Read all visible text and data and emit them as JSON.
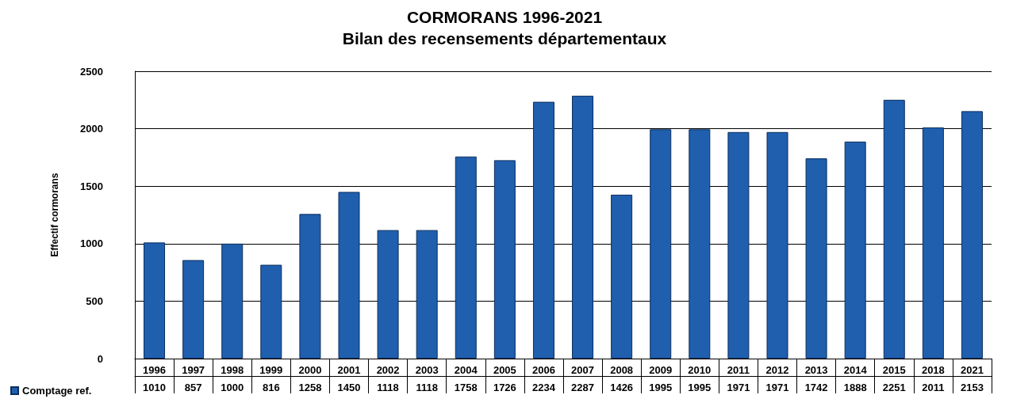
{
  "chart_data": {
    "type": "bar",
    "title": "CORMORANS 1996-2021",
    "subtitle": "Bilan des recensements départementaux",
    "ylabel": "Effectif cormorans",
    "categories": [
      "1996",
      "1997",
      "1998",
      "1999",
      "2000",
      "2001",
      "2002",
      "2003",
      "2004",
      "2005",
      "2006",
      "2007",
      "2008",
      "2009",
      "2010",
      "2011",
      "2012",
      "2013",
      "2014",
      "2015",
      "2018",
      "2021"
    ],
    "series": [
      {
        "name": "Comptage ref.",
        "color": "#1f5fae",
        "values": [
          1010,
          857,
          1000,
          816,
          1258,
          1450,
          1118,
          1118,
          1758,
          1726,
          2234,
          2287,
          1426,
          1995,
          1995,
          1971,
          1971,
          1742,
          1888,
          2251,
          2011,
          2153
        ]
      }
    ],
    "ylim": [
      0,
      2500
    ],
    "yticks": [
      0,
      500,
      1000,
      1500,
      2000,
      2500
    ],
    "grid": "y",
    "legend": "bottom left",
    "data_labels": true
  }
}
